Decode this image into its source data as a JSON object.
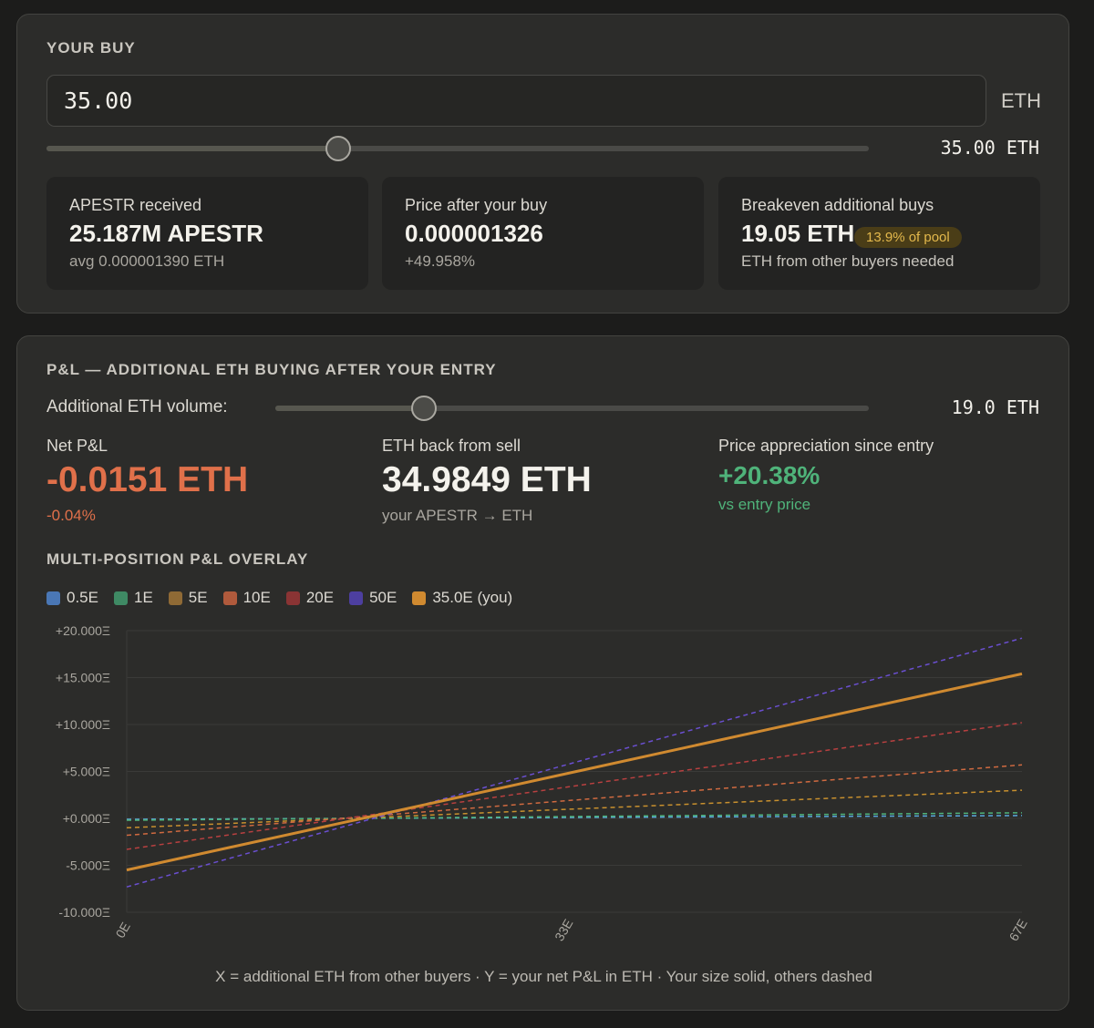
{
  "your_buy": {
    "title": "YOUR BUY",
    "amount_value": "35.00",
    "unit": "ETH",
    "slider_fraction": 0.355,
    "slider_readout": "35.00 ETH",
    "stats": [
      {
        "label": "APESTR received",
        "value": "25.187M APESTR",
        "sub": "avg 0.000001390 ETH"
      },
      {
        "label": "Price after your buy",
        "value": "0.000001326",
        "sub": "+49.958%"
      },
      {
        "label": "Breakeven additional buys",
        "value": "19.05 ETH",
        "badge": "13.9% of pool",
        "sub": "ETH from other buyers needed"
      }
    ]
  },
  "pnl": {
    "title": "P&L — ADDITIONAL ETH BUYING AFTER YOUR ENTRY",
    "volume_label": "Additional ETH volume:",
    "volume_slider_fraction": 0.25,
    "volume_readout": "19.0 ETH",
    "net_pnl": {
      "label": "Net P&L",
      "value": "-0.0151 ETH",
      "sub": "-0.04%"
    },
    "eth_back": {
      "label": "ETH back from sell",
      "value": "34.9849 ETH",
      "sub": "your APESTR → ETH"
    },
    "appreciation": {
      "label": "Price appreciation since entry",
      "value": "+20.38%",
      "sub": "vs entry price"
    },
    "colors": {
      "negative": "#e0704a",
      "positive": "#4fb37a"
    },
    "overlay_title": "MULTI-POSITION P&L OVERLAY",
    "legend": [
      {
        "label": "0.5E",
        "color": "#4a77b5"
      },
      {
        "label": "1E",
        "color": "#3f8a64"
      },
      {
        "label": "5E",
        "color": "#8f6a35"
      },
      {
        "label": "10E",
        "color": "#b05a3c"
      },
      {
        "label": "20E",
        "color": "#8a3434"
      },
      {
        "label": "50E",
        "color": "#4d3fa0"
      },
      {
        "label": "35.0E (you)",
        "color": "#d08a30"
      }
    ],
    "caption": "X = additional ETH from other buyers · Y = your net P&L in ETH · Your size solid, others dashed"
  },
  "chart_data": {
    "type": "line",
    "title": "MULTI-POSITION P&L OVERLAY",
    "xlabel": "X = additional ETH from other buyers",
    "ylabel": "Y = your net P&L in ETH",
    "xlim": [
      0,
      67
    ],
    "ylim": [
      -10,
      20
    ],
    "x_ticks": [
      "0E",
      "33E",
      "67E"
    ],
    "y_ticks": [
      "+20.000Ξ",
      "+15.000Ξ",
      "+10.000Ξ",
      "+5.000Ξ",
      "+0.000Ξ",
      "-5.000Ξ",
      "-10.000Ξ"
    ],
    "y_tick_values": [
      20,
      15,
      10,
      5,
      0,
      -5,
      -10
    ],
    "x": [
      0,
      67
    ],
    "series": [
      {
        "name": "0.5E",
        "values": [
          -0.1,
          0.3
        ],
        "color": "#5aa9e0",
        "style": "dashed"
      },
      {
        "name": "1E",
        "values": [
          -0.2,
          0.6
        ],
        "color": "#4fb37a",
        "style": "dashed"
      },
      {
        "name": "5E",
        "values": [
          -1.0,
          3.0
        ],
        "color": "#c8902e",
        "style": "dashed"
      },
      {
        "name": "10E",
        "values": [
          -1.8,
          5.7
        ],
        "color": "#d06a40",
        "style": "dashed"
      },
      {
        "name": "20E",
        "values": [
          -3.3,
          10.2
        ],
        "color": "#b84040",
        "style": "dashed"
      },
      {
        "name": "50E",
        "values": [
          -7.3,
          19.2
        ],
        "color": "#6a4fd0",
        "style": "dashed"
      },
      {
        "name": "35.0E (you)",
        "values": [
          -5.5,
          15.4
        ],
        "color": "#d08a30",
        "style": "solid"
      }
    ],
    "grid": true,
    "legend_position": "top-left"
  }
}
